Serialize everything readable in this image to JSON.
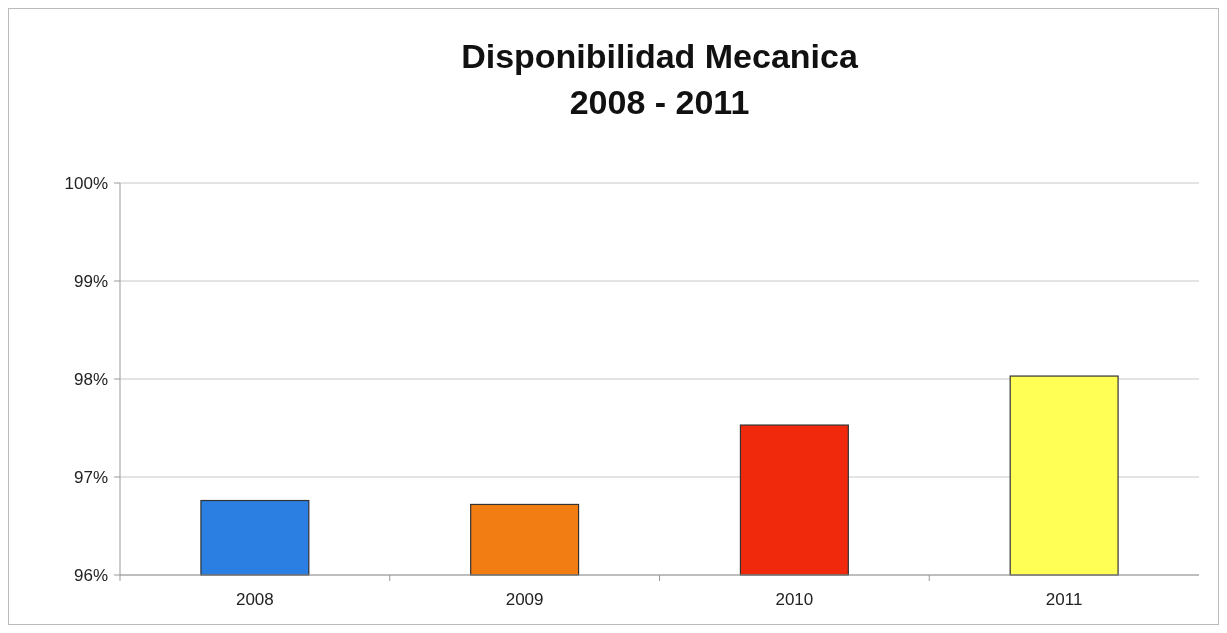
{
  "chart_data": {
    "type": "bar",
    "title": "Disponibilidad Mecanica\n2008 - 2011",
    "categories": [
      "2008",
      "2009",
      "2010",
      "2011"
    ],
    "values": [
      96.76,
      96.72,
      97.53,
      98.03
    ],
    "colors": [
      "#2b7fe3",
      "#f27d12",
      "#f0290c",
      "#ffff55"
    ],
    "ylim": [
      96,
      100
    ],
    "yticks": [
      {
        "value": 96,
        "label": "96%"
      },
      {
        "value": 97,
        "label": "97%"
      },
      {
        "value": 98,
        "label": "98%"
      },
      {
        "value": 99,
        "label": "99%"
      },
      {
        "value": 100,
        "label": "100%"
      }
    ],
    "grid": "y"
  }
}
